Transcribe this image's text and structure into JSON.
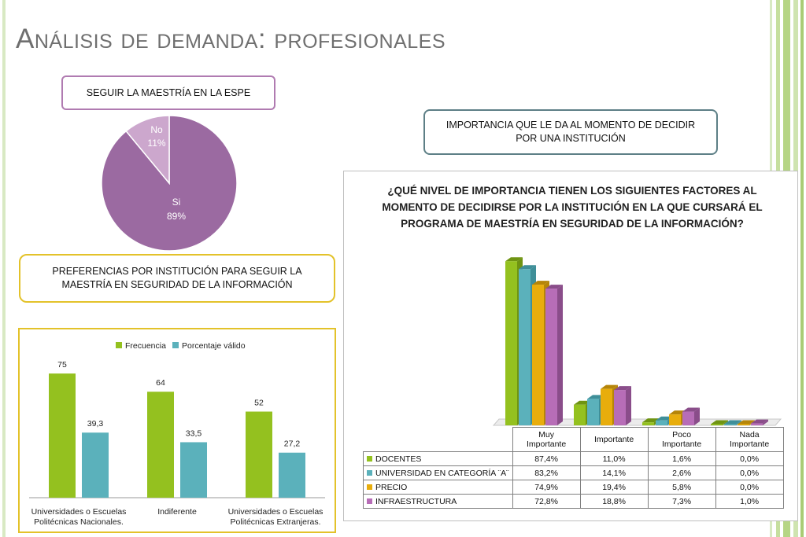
{
  "slide": {
    "title": "Análisis de demanda: profesionales",
    "box1": "SEGUIR LA MAESTRÍA EN LA ESPE",
    "box2": "IMPORTANCIA QUE LE DA AL MOMENTO DE DECIDIR POR UNA INSTITUCIÓN",
    "box3": "PREFERENCIAS POR INSTITUCIÓN  PARA SEGUIR LA MAESTRÍA EN SEGURIDAD DE LA INFORMACIÓN",
    "colors": {
      "green": "#94c11f",
      "teal": "#5bb1bb",
      "gold": "#e8ad0c",
      "purple": "#b76db7",
      "pie_main": "#9b6aa1",
      "pie_minor": "#cca7cd"
    }
  },
  "chart_data": [
    {
      "type": "pie",
      "title": "",
      "slices": [
        {
          "label": "Si",
          "value": 89,
          "display": "89%"
        },
        {
          "label": "No",
          "value": 11,
          "display": "11%"
        }
      ]
    },
    {
      "type": "bar",
      "title": "",
      "legend_position": "top",
      "categories": [
        [
          "Universidades o Escuelas",
          "Politécnicas Nacionales."
        ],
        [
          "Indiferente"
        ],
        [
          "Universidades o Escuelas",
          "Politécnicas Extranjeras."
        ]
      ],
      "series": [
        {
          "name": "Frecuencia",
          "values": [
            75,
            64,
            52
          ],
          "labels": [
            "75",
            "64",
            "52"
          ]
        },
        {
          "name": "Porcentaje válido",
          "values": [
            39.3,
            33.5,
            27.2
          ],
          "labels": [
            "39,3",
            "33,5",
            "27,2"
          ]
        }
      ],
      "ylim": [
        0,
        85
      ]
    },
    {
      "type": "bar",
      "title": "¿QUÉ NIVEL DE IMPORTANCIA TIENEN LOS SIGUIENTES FACTORES AL MOMENTO DE DECIDIRSE POR LA INSTITUCIÓN EN LA QUE CURSARÁ EL PROGRAMA DE MAESTRÍA EN SEGURIDAD DE LA INFORMACIÓN?",
      "categories": [
        [
          "Muy",
          "Importante"
        ],
        [
          "Importante"
        ],
        [
          "Poco",
          "Importante"
        ],
        [
          "Nada",
          "Importante"
        ]
      ],
      "series": [
        {
          "name": "DOCENTES",
          "values": [
            87.4,
            11.0,
            1.6,
            0.0
          ],
          "labels": [
            "87,4%",
            "11,0%",
            "1,6%",
            "0,0%"
          ]
        },
        {
          "name": "UNIVERSIDAD EN CATEGORÍA ¨A¨",
          "values": [
            83.2,
            14.1,
            2.6,
            0.0
          ],
          "labels": [
            "83,2%",
            "14,1%",
            "2,6%",
            "0,0%"
          ]
        },
        {
          "name": "PRECIO",
          "values": [
            74.9,
            19.4,
            5.8,
            0.0
          ],
          "labels": [
            "74,9%",
            "19,4%",
            "5,8%",
            "0,0%"
          ]
        },
        {
          "name": "INFRAESTRUCTURA",
          "values": [
            72.8,
            18.8,
            7.3,
            1.0
          ],
          "labels": [
            "72,8%",
            "18,8%",
            "7,3%",
            "1,0%"
          ]
        }
      ],
      "ylim": [
        0,
        90
      ],
      "data_table": true
    }
  ]
}
